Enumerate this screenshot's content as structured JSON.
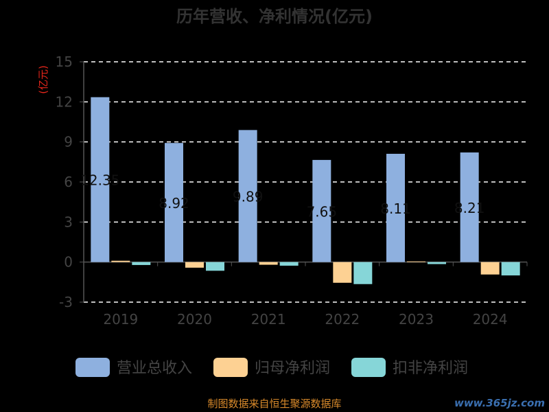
{
  "chart_data": {
    "type": "bar",
    "title": "历年营收、净利情况(亿元)",
    "ylabel": "(亿元)",
    "xlabel": "",
    "ylim": [
      -3,
      15
    ],
    "yticks": [
      -3,
      0,
      3,
      6,
      9,
      12,
      15
    ],
    "grid": true,
    "legend_position": "bottom",
    "categories": [
      "2019",
      "2020",
      "2021",
      "2022",
      "2023",
      "2024"
    ],
    "series": [
      {
        "name": "营业总收入",
        "color": "#8eb0df",
        "values": [
          12.35,
          8.92,
          9.89,
          7.65,
          8.11,
          8.21
        ]
      },
      {
        "name": "归母净利润",
        "color": "#fdd193",
        "values": [
          0.1,
          -0.42,
          -0.2,
          -1.55,
          0.05,
          -0.93
        ]
      },
      {
        "name": "扣非净利润",
        "color": "#86d6d8",
        "values": [
          -0.22,
          -0.65,
          -0.27,
          -1.65,
          -0.15,
          -1.0
        ]
      }
    ],
    "data_labels": [
      "12.35",
      "8.92",
      "9.89",
      "7.65",
      "8.11",
      "8.21"
    ]
  },
  "source": "制图数据来自恒生聚源数据库",
  "watermark": "www.365jz.com"
}
